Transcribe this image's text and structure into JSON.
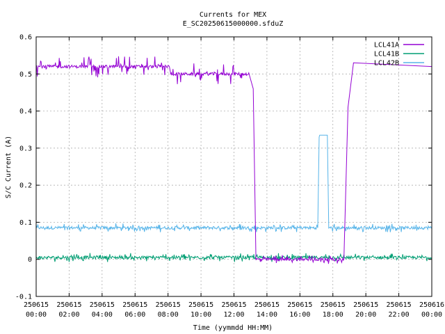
{
  "chart_data": {
    "type": "line",
    "title": "Currents for MEX",
    "subtitle": "E_SC20250615000000.sfduZ",
    "xlabel": "Time (yymmdd HH:MM)",
    "ylabel": "S/C Current (A)",
    "xlim": [
      "2025-06-15 00:00",
      "2025-06-16 00:00"
    ],
    "ylim": [
      -0.1,
      0.6
    ],
    "yticks": [
      "-0.1",
      "0",
      "0.1",
      "0.2",
      "0.3",
      "0.4",
      "0.5",
      "0.6"
    ],
    "xticks": [
      {
        "date": "250615",
        "time": "00:00"
      },
      {
        "date": "250615",
        "time": "02:00"
      },
      {
        "date": "250615",
        "time": "04:00"
      },
      {
        "date": "250615",
        "time": "06:00"
      },
      {
        "date": "250615",
        "time": "08:00"
      },
      {
        "date": "250615",
        "time": "10:00"
      },
      {
        "date": "250615",
        "time": "12:00"
      },
      {
        "date": "250615",
        "time": "14:00"
      },
      {
        "date": "250615",
        "time": "16:00"
      },
      {
        "date": "250615",
        "time": "18:00"
      },
      {
        "date": "250615",
        "time": "20:00"
      },
      {
        "date": "250615",
        "time": "22:00"
      },
      {
        "date": "250616",
        "time": "00:00"
      }
    ],
    "grid": true,
    "legend_position": "top-right",
    "series": [
      {
        "name": "LCL41A",
        "color": "#9400d3",
        "points": [
          [
            "2025-06-15 00:00",
            0.52
          ],
          [
            "2025-06-15 08:05",
            0.52
          ],
          [
            "2025-06-15 08:10",
            0.5
          ],
          [
            "2025-06-15 12:55",
            0.5
          ],
          [
            "2025-06-15 13:10",
            0.46
          ],
          [
            "2025-06-15 13:20",
            0.0
          ],
          [
            "2025-06-15 18:40",
            0.0
          ],
          [
            "2025-06-15 18:55",
            0.41
          ],
          [
            "2025-06-15 19:15",
            0.53
          ],
          [
            "2025-06-16 00:00",
            0.52
          ]
        ]
      },
      {
        "name": "LCL41B",
        "color": "#009e73",
        "points": [
          [
            "2025-06-15 00:00",
            0.005
          ],
          [
            "2025-06-16 00:00",
            0.005
          ]
        ]
      },
      {
        "name": "LCL42B",
        "color": "#56b4e9",
        "points": [
          [
            "2025-06-15 00:00",
            0.085
          ],
          [
            "2025-06-15 17:05",
            0.085
          ],
          [
            "2025-06-15 17:10",
            0.33
          ],
          [
            "2025-06-15 17:12",
            0.335
          ],
          [
            "2025-06-15 17:40",
            0.335
          ],
          [
            "2025-06-15 17:45",
            0.085
          ],
          [
            "2025-06-16 00:00",
            0.085
          ]
        ]
      }
    ]
  }
}
